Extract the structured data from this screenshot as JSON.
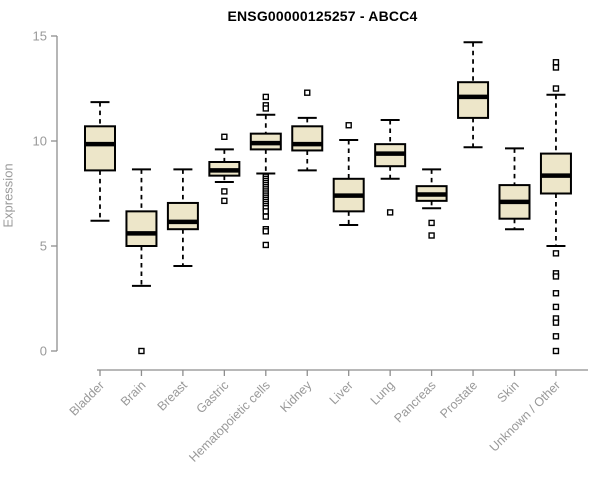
{
  "chart_data": {
    "type": "boxplot",
    "title": "ENSG00000125257 - ABCC4",
    "ylabel": "Expression",
    "xlabel": "",
    "ylim": [
      0,
      15
    ],
    "yticks": [
      0,
      5,
      10,
      15
    ],
    "grid": false,
    "legend": "none",
    "colors": {
      "box_fill": "#EDE6C9",
      "box_border": "#000000",
      "median": "#000000",
      "axis": "#8e8e8e",
      "tick_label": "#999999",
      "outlier_fill": "#ffffff"
    },
    "categories": [
      "Bladder",
      "Brain",
      "Breast",
      "Gastric",
      "Hematopoietic cells",
      "Kidney",
      "Liver",
      "Lung",
      "Pancreas",
      "Prostate",
      "Skin",
      "Unknown / Other"
    ],
    "boxes": [
      {
        "label": "Bladder",
        "low": 6.2,
        "q1": 8.6,
        "median": 9.85,
        "q3": 10.7,
        "high": 11.85,
        "outliers": []
      },
      {
        "label": "Brain",
        "low": 3.1,
        "q1": 5.0,
        "median": 5.6,
        "q3": 6.65,
        "high": 8.65,
        "outliers": [
          0
        ]
      },
      {
        "label": "Breast",
        "low": 4.05,
        "q1": 5.8,
        "median": 6.15,
        "q3": 7.05,
        "high": 8.65,
        "outliers": []
      },
      {
        "label": "Gastric",
        "low": 8.05,
        "q1": 8.35,
        "median": 8.6,
        "q3": 9.0,
        "high": 9.6,
        "outliers": [
          10.2,
          7.6,
          7.15
        ]
      },
      {
        "label": "Hematopoietic cells",
        "low": 8.45,
        "q1": 9.6,
        "median": 9.9,
        "q3": 10.35,
        "high": 11.25,
        "outliers": [
          12.1,
          11.7,
          11.55,
          8.3,
          8.2,
          8.1,
          8.0,
          7.9,
          7.8,
          7.7,
          7.6,
          7.5,
          7.4,
          7.3,
          7.2,
          7.1,
          7.0,
          6.9,
          6.8,
          6.65,
          6.4,
          5.8,
          5.7,
          5.05
        ]
      },
      {
        "label": "Kidney",
        "low": 8.6,
        "q1": 9.55,
        "median": 9.85,
        "q3": 10.7,
        "high": 11.1,
        "outliers": [
          12.3
        ]
      },
      {
        "label": "Liver",
        "low": 6.0,
        "q1": 6.65,
        "median": 7.4,
        "q3": 8.2,
        "high": 10.05,
        "outliers": [
          10.75
        ]
      },
      {
        "label": "Lung",
        "low": 8.2,
        "q1": 8.8,
        "median": 9.4,
        "q3": 9.85,
        "high": 11.0,
        "outliers": [
          6.6
        ]
      },
      {
        "label": "Pancreas",
        "low": 6.8,
        "q1": 7.15,
        "median": 7.45,
        "q3": 7.85,
        "high": 8.65,
        "outliers": [
          6.1,
          5.5
        ]
      },
      {
        "label": "Prostate",
        "low": 9.7,
        "q1": 11.1,
        "median": 12.1,
        "q3": 12.8,
        "high": 14.7,
        "outliers": []
      },
      {
        "label": "Skin",
        "low": 5.8,
        "q1": 6.3,
        "median": 7.1,
        "q3": 7.9,
        "high": 9.65,
        "outliers": []
      },
      {
        "label": "Unknown / Other",
        "low": 5.0,
        "q1": 7.5,
        "median": 8.35,
        "q3": 9.4,
        "high": 12.2,
        "outliers": [
          13.75,
          13.5,
          12.5,
          4.65,
          3.7,
          3.55,
          2.75,
          2.1,
          1.55,
          1.35,
          0.7,
          0
        ]
      }
    ]
  }
}
